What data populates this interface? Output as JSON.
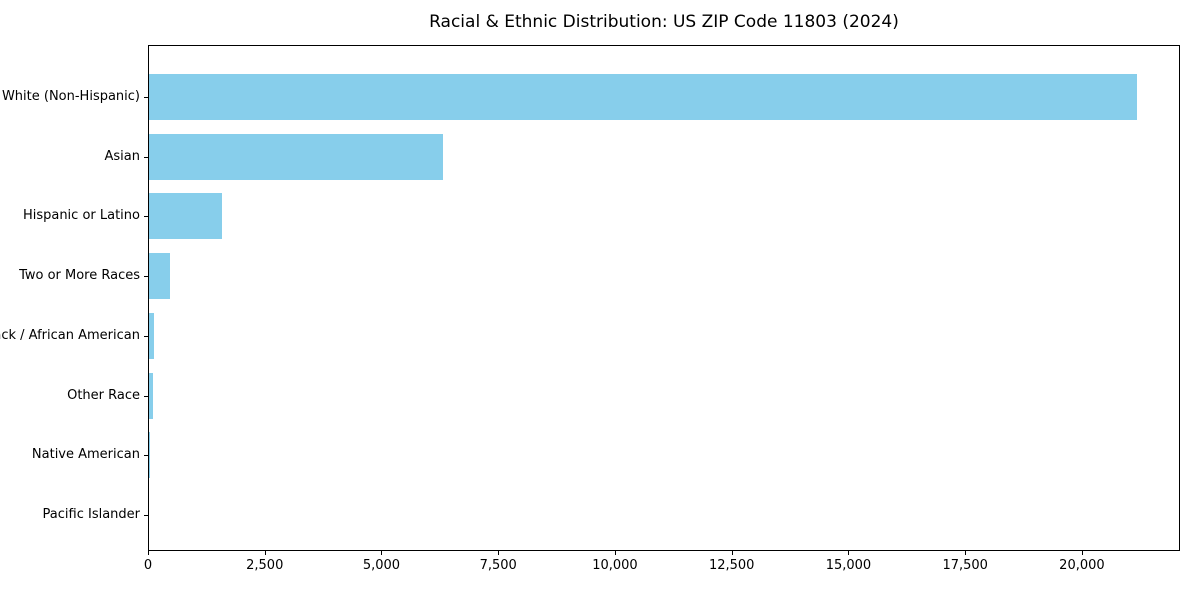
{
  "title": "Racial & Ethnic Distribution: US ZIP Code 11803 (2024)",
  "chart_data": {
    "type": "bar",
    "orientation": "horizontal",
    "title": "Racial & Ethnic Distribution: US ZIP Code 11803 (2024)",
    "categories": [
      "White (Non-Hispanic)",
      "Asian",
      "Hispanic or Latino",
      "Two or More Races",
      "Black / African American",
      "Other Race",
      "Native American",
      "Pacific Islander"
    ],
    "values": [
      21150,
      6300,
      1560,
      460,
      115,
      90,
      20,
      0
    ],
    "xlabel": "",
    "ylabel": "",
    "xlim": [
      0,
      22100
    ],
    "xticks": [
      0,
      2500,
      5000,
      7500,
      10000,
      12500,
      15000,
      17500,
      20000
    ],
    "xtick_labels": [
      "0",
      "2,500",
      "5,000",
      "7,500",
      "10,000",
      "12,500",
      "15,000",
      "17,500",
      "20,000"
    ],
    "bar_color": "#87CEEB",
    "background": "#FFFFFF",
    "grid": false,
    "legend": null
  }
}
